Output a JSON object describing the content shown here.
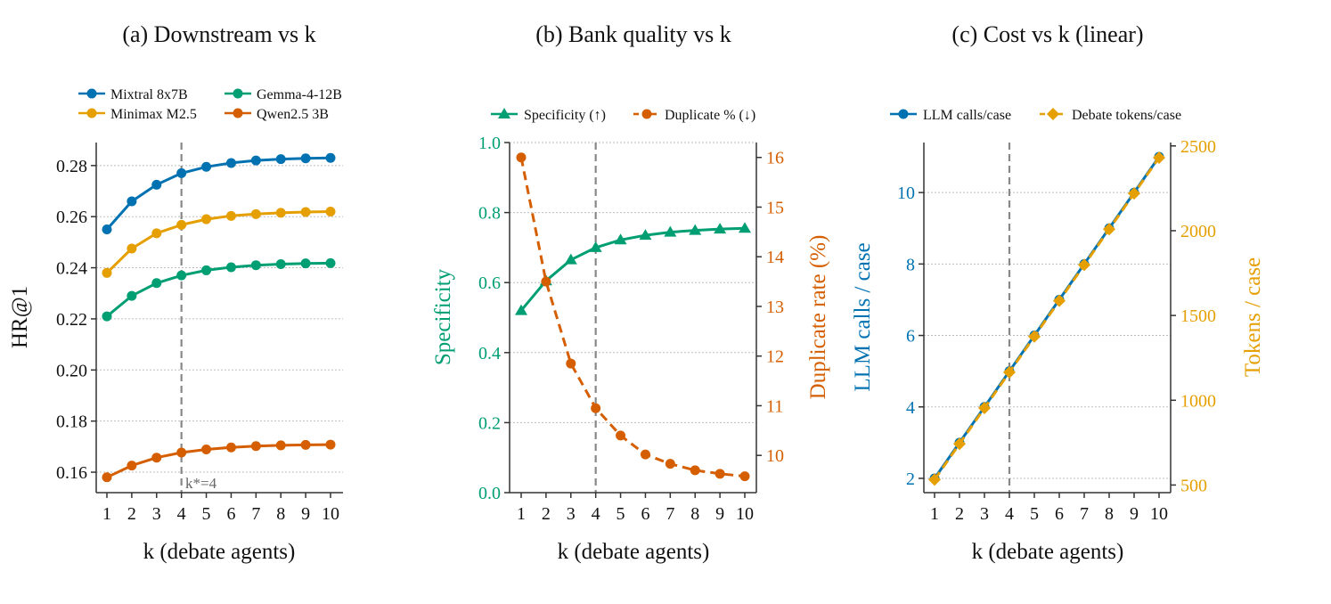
{
  "chart_data": [
    {
      "type": "line",
      "title": "(a) Downstream vs k",
      "xlabel": "k (debate agents)",
      "ylabel": "HR@1",
      "x": [
        1,
        2,
        3,
        4,
        5,
        6,
        7,
        8,
        9,
        10
      ],
      "xticks": [
        "1",
        "2",
        "3",
        "4",
        "5",
        "6",
        "7",
        "8",
        "9",
        "10"
      ],
      "ylim": [
        0.152,
        0.289
      ],
      "yticks": [
        0.16,
        0.18,
        0.2,
        0.22,
        0.24,
        0.26,
        0.28
      ],
      "ytick_labels": [
        "0.16",
        "0.18",
        "0.20",
        "0.22",
        "0.24",
        "0.26",
        "0.28"
      ],
      "grid": "horizontal",
      "legend_position": "top",
      "vline": {
        "x": 4,
        "label": "k*=4"
      },
      "series": [
        {
          "name": "Mixtral 8x7B",
          "color": "#0072B2",
          "marker": "circle",
          "values": [
            0.255,
            0.266,
            0.2725,
            0.277,
            0.2795,
            0.281,
            0.282,
            0.2825,
            0.2828,
            0.283
          ]
        },
        {
          "name": "Minimax M2.5",
          "color": "#E69F00",
          "marker": "circle",
          "values": [
            0.238,
            0.2475,
            0.2535,
            0.2568,
            0.259,
            0.2603,
            0.261,
            0.2615,
            0.2618,
            0.262
          ]
        },
        {
          "name": "Gemma-4-12B",
          "color": "#009E73",
          "marker": "circle",
          "values": [
            0.221,
            0.229,
            0.234,
            0.237,
            0.239,
            0.2402,
            0.241,
            0.2414,
            0.2417,
            0.2418
          ]
        },
        {
          "name": "Qwen2.5 3B",
          "color": "#D55E00",
          "marker": "circle",
          "values": [
            0.158,
            0.1626,
            0.1657,
            0.1677,
            0.1689,
            0.1697,
            0.1702,
            0.1705,
            0.1707,
            0.1708
          ]
        }
      ]
    },
    {
      "type": "line",
      "title": "(b) Bank quality vs k",
      "xlabel": "k (debate agents)",
      "ylabel": "Specificity",
      "ylabel_right": "Duplicate rate (%)",
      "x": [
        1,
        2,
        3,
        4,
        5,
        6,
        7,
        8,
        9,
        10
      ],
      "xticks": [
        "1",
        "2",
        "3",
        "4",
        "5",
        "6",
        "7",
        "8",
        "9",
        "10"
      ],
      "ylim": [
        0.0,
        1.0
      ],
      "yticks": [
        0.0,
        0.2,
        0.4,
        0.6,
        0.8,
        1.0
      ],
      "ytick_labels": [
        "0.0",
        "0.2",
        "0.4",
        "0.6",
        "0.8",
        "1.0"
      ],
      "ylim_right": [
        9.25,
        16.3
      ],
      "yticks_right": [
        10,
        11,
        12,
        13,
        14,
        15,
        16
      ],
      "ytick_labels_right": [
        "10",
        "11",
        "12",
        "13",
        "14",
        "15",
        "16"
      ],
      "grid": "horizontal",
      "legend_position": "top",
      "vline": {
        "x": 4
      },
      "series": [
        {
          "name": "Specificity (↑)",
          "axis": "left",
          "color": "#009E73",
          "marker": "triangle",
          "dashed": false,
          "values": [
            0.52,
            0.605,
            0.665,
            0.7,
            0.722,
            0.735,
            0.744,
            0.749,
            0.753,
            0.755
          ]
        },
        {
          "name": "Duplicate % (↓)",
          "axis": "right",
          "color": "#D55E00",
          "marker": "circle",
          "dashed": true,
          "values": [
            16.0,
            13.5,
            11.85,
            10.95,
            10.4,
            10.02,
            9.83,
            9.7,
            9.63,
            9.58
          ]
        }
      ]
    },
    {
      "type": "line",
      "title": "(c) Cost vs k (linear)",
      "xlabel": "k (debate agents)",
      "ylabel": "LLM calls / case",
      "ylabel_right": "Tokens / case",
      "x": [
        1,
        2,
        3,
        4,
        5,
        6,
        7,
        8,
        9,
        10
      ],
      "xticks": [
        "1",
        "2",
        "3",
        "4",
        "5",
        "6",
        "7",
        "8",
        "9",
        "10"
      ],
      "ylim": [
        1.6,
        11.4
      ],
      "yticks": [
        2,
        4,
        6,
        8,
        10
      ],
      "ytick_labels": [
        "2",
        "4",
        "6",
        "8",
        "10"
      ],
      "ylim_right": [
        455,
        2520
      ],
      "yticks_right": [
        500,
        1000,
        1500,
        2000,
        2500
      ],
      "ytick_labels_right": [
        "500",
        "1000",
        "1500",
        "2000",
        "2500"
      ],
      "grid": "horizontal",
      "legend_position": "top",
      "vline": {
        "x": 4
      },
      "series": [
        {
          "name": "LLM calls/case",
          "axis": "left",
          "color": "#0072B2",
          "marker": "circle",
          "dashed": false,
          "values": [
            2,
            3,
            4,
            5,
            6,
            7,
            8,
            9,
            10,
            11
          ]
        },
        {
          "name": "Debate tokens/case",
          "axis": "right",
          "color": "#E69F00",
          "marker": "diamond",
          "dashed": true,
          "values": [
            532,
            743,
            954,
            1165,
            1376,
            1587,
            1798,
            2009,
            2220,
            2431
          ]
        }
      ]
    }
  ]
}
